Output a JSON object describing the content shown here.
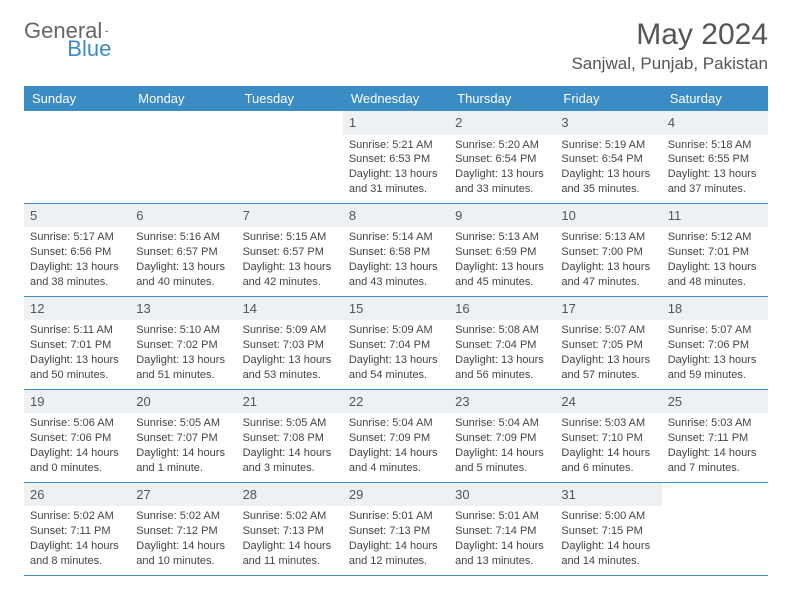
{
  "logo": {
    "text1": "General",
    "text2": "Blue"
  },
  "title": "May 2024",
  "location": "Sanjwal, Punjab, Pakistan",
  "colors": {
    "header_bg": "#3b8bc4",
    "header_text": "#ffffff",
    "daynum_bg": "#eef1f3",
    "text": "#444444",
    "border": "#3b8bc4"
  },
  "dayNames": [
    "Sunday",
    "Monday",
    "Tuesday",
    "Wednesday",
    "Thursday",
    "Friday",
    "Saturday"
  ],
  "weeks": [
    [
      {
        "n": "",
        "sr": "",
        "ss": "",
        "dl": ""
      },
      {
        "n": "",
        "sr": "",
        "ss": "",
        "dl": ""
      },
      {
        "n": "",
        "sr": "",
        "ss": "",
        "dl": ""
      },
      {
        "n": "1",
        "sr": "Sunrise: 5:21 AM",
        "ss": "Sunset: 6:53 PM",
        "dl": "Daylight: 13 hours and 31 minutes."
      },
      {
        "n": "2",
        "sr": "Sunrise: 5:20 AM",
        "ss": "Sunset: 6:54 PM",
        "dl": "Daylight: 13 hours and 33 minutes."
      },
      {
        "n": "3",
        "sr": "Sunrise: 5:19 AM",
        "ss": "Sunset: 6:54 PM",
        "dl": "Daylight: 13 hours and 35 minutes."
      },
      {
        "n": "4",
        "sr": "Sunrise: 5:18 AM",
        "ss": "Sunset: 6:55 PM",
        "dl": "Daylight: 13 hours and 37 minutes."
      }
    ],
    [
      {
        "n": "5",
        "sr": "Sunrise: 5:17 AM",
        "ss": "Sunset: 6:56 PM",
        "dl": "Daylight: 13 hours and 38 minutes."
      },
      {
        "n": "6",
        "sr": "Sunrise: 5:16 AM",
        "ss": "Sunset: 6:57 PM",
        "dl": "Daylight: 13 hours and 40 minutes."
      },
      {
        "n": "7",
        "sr": "Sunrise: 5:15 AM",
        "ss": "Sunset: 6:57 PM",
        "dl": "Daylight: 13 hours and 42 minutes."
      },
      {
        "n": "8",
        "sr": "Sunrise: 5:14 AM",
        "ss": "Sunset: 6:58 PM",
        "dl": "Daylight: 13 hours and 43 minutes."
      },
      {
        "n": "9",
        "sr": "Sunrise: 5:13 AM",
        "ss": "Sunset: 6:59 PM",
        "dl": "Daylight: 13 hours and 45 minutes."
      },
      {
        "n": "10",
        "sr": "Sunrise: 5:13 AM",
        "ss": "Sunset: 7:00 PM",
        "dl": "Daylight: 13 hours and 47 minutes."
      },
      {
        "n": "11",
        "sr": "Sunrise: 5:12 AM",
        "ss": "Sunset: 7:01 PM",
        "dl": "Daylight: 13 hours and 48 minutes."
      }
    ],
    [
      {
        "n": "12",
        "sr": "Sunrise: 5:11 AM",
        "ss": "Sunset: 7:01 PM",
        "dl": "Daylight: 13 hours and 50 minutes."
      },
      {
        "n": "13",
        "sr": "Sunrise: 5:10 AM",
        "ss": "Sunset: 7:02 PM",
        "dl": "Daylight: 13 hours and 51 minutes."
      },
      {
        "n": "14",
        "sr": "Sunrise: 5:09 AM",
        "ss": "Sunset: 7:03 PM",
        "dl": "Daylight: 13 hours and 53 minutes."
      },
      {
        "n": "15",
        "sr": "Sunrise: 5:09 AM",
        "ss": "Sunset: 7:04 PM",
        "dl": "Daylight: 13 hours and 54 minutes."
      },
      {
        "n": "16",
        "sr": "Sunrise: 5:08 AM",
        "ss": "Sunset: 7:04 PM",
        "dl": "Daylight: 13 hours and 56 minutes."
      },
      {
        "n": "17",
        "sr": "Sunrise: 5:07 AM",
        "ss": "Sunset: 7:05 PM",
        "dl": "Daylight: 13 hours and 57 minutes."
      },
      {
        "n": "18",
        "sr": "Sunrise: 5:07 AM",
        "ss": "Sunset: 7:06 PM",
        "dl": "Daylight: 13 hours and 59 minutes."
      }
    ],
    [
      {
        "n": "19",
        "sr": "Sunrise: 5:06 AM",
        "ss": "Sunset: 7:06 PM",
        "dl": "Daylight: 14 hours and 0 minutes."
      },
      {
        "n": "20",
        "sr": "Sunrise: 5:05 AM",
        "ss": "Sunset: 7:07 PM",
        "dl": "Daylight: 14 hours and 1 minute."
      },
      {
        "n": "21",
        "sr": "Sunrise: 5:05 AM",
        "ss": "Sunset: 7:08 PM",
        "dl": "Daylight: 14 hours and 3 minutes."
      },
      {
        "n": "22",
        "sr": "Sunrise: 5:04 AM",
        "ss": "Sunset: 7:09 PM",
        "dl": "Daylight: 14 hours and 4 minutes."
      },
      {
        "n": "23",
        "sr": "Sunrise: 5:04 AM",
        "ss": "Sunset: 7:09 PM",
        "dl": "Daylight: 14 hours and 5 minutes."
      },
      {
        "n": "24",
        "sr": "Sunrise: 5:03 AM",
        "ss": "Sunset: 7:10 PM",
        "dl": "Daylight: 14 hours and 6 minutes."
      },
      {
        "n": "25",
        "sr": "Sunrise: 5:03 AM",
        "ss": "Sunset: 7:11 PM",
        "dl": "Daylight: 14 hours and 7 minutes."
      }
    ],
    [
      {
        "n": "26",
        "sr": "Sunrise: 5:02 AM",
        "ss": "Sunset: 7:11 PM",
        "dl": "Daylight: 14 hours and 8 minutes."
      },
      {
        "n": "27",
        "sr": "Sunrise: 5:02 AM",
        "ss": "Sunset: 7:12 PM",
        "dl": "Daylight: 14 hours and 10 minutes."
      },
      {
        "n": "28",
        "sr": "Sunrise: 5:02 AM",
        "ss": "Sunset: 7:13 PM",
        "dl": "Daylight: 14 hours and 11 minutes."
      },
      {
        "n": "29",
        "sr": "Sunrise: 5:01 AM",
        "ss": "Sunset: 7:13 PM",
        "dl": "Daylight: 14 hours and 12 minutes."
      },
      {
        "n": "30",
        "sr": "Sunrise: 5:01 AM",
        "ss": "Sunset: 7:14 PM",
        "dl": "Daylight: 14 hours and 13 minutes."
      },
      {
        "n": "31",
        "sr": "Sunrise: 5:00 AM",
        "ss": "Sunset: 7:15 PM",
        "dl": "Daylight: 14 hours and 14 minutes."
      },
      {
        "n": "",
        "sr": "",
        "ss": "",
        "dl": ""
      }
    ]
  ]
}
